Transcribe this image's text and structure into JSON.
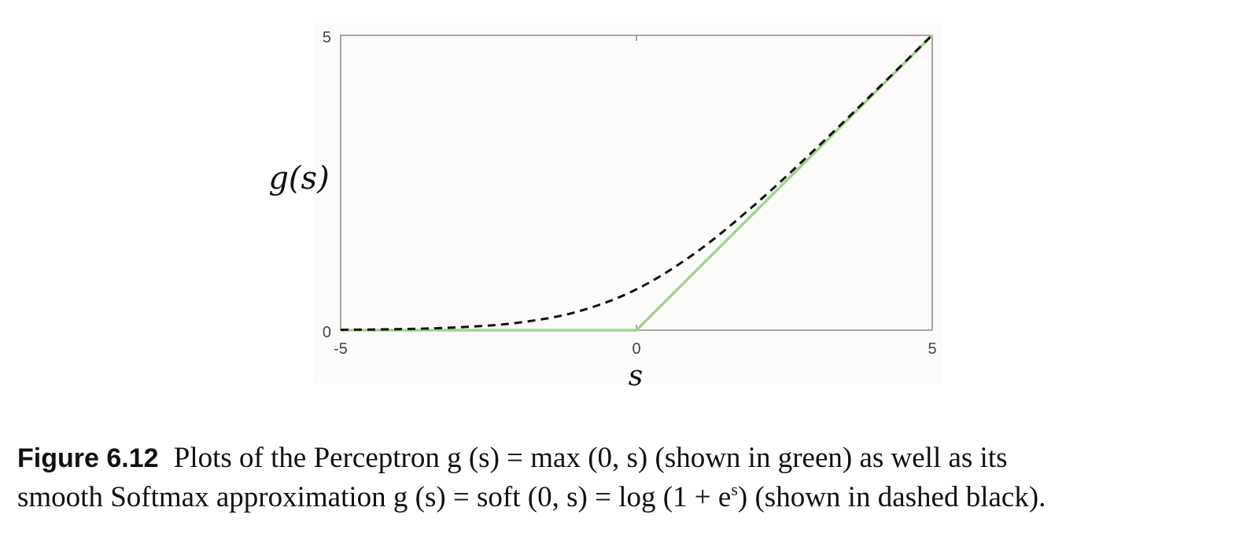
{
  "chart_data": {
    "type": "line",
    "xlabel": "s",
    "ylabel": "g(s)",
    "xlim": [
      -5,
      5
    ],
    "ylim": [
      0,
      5
    ],
    "x_ticks": [
      "-5",
      "0",
      "5"
    ],
    "y_ticks": [
      "0",
      "5"
    ],
    "grid": false,
    "series": [
      {
        "style": "solid",
        "color": "#a3d18e",
        "x": [
          -5,
          0,
          5
        ],
        "y": [
          0,
          0,
          5
        ]
      },
      {
        "style": "dashed",
        "color": "#111111",
        "x": [
          -5,
          -4,
          -3,
          -2,
          -1,
          0,
          1,
          2,
          3,
          4,
          5
        ],
        "y": [
          0.007,
          0.018,
          0.049,
          0.127,
          0.313,
          0.693,
          1.313,
          2.127,
          3.049,
          4.018,
          5.007
        ]
      }
    ]
  },
  "caption": {
    "figure_number": "Figure 6.12",
    "line1": "Plots of the Perceptron g (s) = max (0, s) (shown in green) as well as its",
    "line2_pre": "smooth Softmax approximation g (s) = soft (0, s) = log (1 + e",
    "line2_sup": "s",
    "line2_post": ") (shown in dashed black)."
  }
}
